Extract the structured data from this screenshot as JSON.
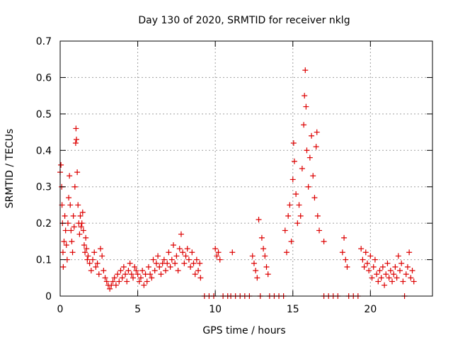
{
  "chart_data": {
    "type": "scatter",
    "title": "Day 130 of 2020, SRMTID for receiver nklg",
    "xlabel": "GPS time / hours",
    "ylabel": "SRMTID / TECUs",
    "xlim": [
      0,
      24
    ],
    "ylim": [
      0,
      0.7
    ],
    "xticks": [
      0,
      5,
      10,
      15,
      20
    ],
    "xtick_labels": [
      "0",
      "5",
      "10",
      "15",
      "20"
    ],
    "yticks": [
      0,
      0.1,
      0.2,
      0.3,
      0.4,
      0.5,
      0.6,
      0.7
    ],
    "ytick_labels": [
      "0",
      "0.1",
      "0.2",
      "0.3",
      "0.4",
      "0.5",
      "0.6",
      "0.7"
    ],
    "grid": true,
    "marker": "+",
    "color": "#dd0000",
    "series": [
      {
        "name": "SRMTID",
        "marker": "+",
        "points": [
          [
            0.0,
            0.34
          ],
          [
            0.05,
            0.36
          ],
          [
            0.1,
            0.3
          ],
          [
            0.12,
            0.25
          ],
          [
            0.15,
            0.2
          ],
          [
            0.18,
            0.12
          ],
          [
            0.2,
            0.08
          ],
          [
            0.25,
            0.15
          ],
          [
            0.3,
            0.22
          ],
          [
            0.35,
            0.18
          ],
          [
            0.4,
            0.14
          ],
          [
            0.45,
            0.1
          ],
          [
            0.5,
            0.2
          ],
          [
            0.55,
            0.27
          ],
          [
            0.6,
            0.33
          ],
          [
            0.65,
            0.25
          ],
          [
            0.7,
            0.18
          ],
          [
            0.75,
            0.15
          ],
          [
            0.8,
            0.12
          ],
          [
            0.85,
            0.22
          ],
          [
            0.9,
            0.19
          ],
          [
            0.95,
            0.3
          ],
          [
            1.0,
            0.42
          ],
          [
            1.02,
            0.46
          ],
          [
            1.05,
            0.43
          ],
          [
            1.1,
            0.34
          ],
          [
            1.15,
            0.25
          ],
          [
            1.2,
            0.2
          ],
          [
            1.25,
            0.17
          ],
          [
            1.3,
            0.22
          ],
          [
            1.35,
            0.19
          ],
          [
            1.4,
            0.2
          ],
          [
            1.45,
            0.23
          ],
          [
            1.5,
            0.18
          ],
          [
            1.55,
            0.14
          ],
          [
            1.6,
            0.12
          ],
          [
            1.65,
            0.16
          ],
          [
            1.7,
            0.13
          ],
          [
            1.75,
            0.1
          ],
          [
            1.8,
            0.11
          ],
          [
            1.9,
            0.09
          ],
          [
            2.0,
            0.07
          ],
          [
            2.1,
            0.1
          ],
          [
            2.2,
            0.12
          ],
          [
            2.3,
            0.08
          ],
          [
            2.4,
            0.09
          ],
          [
            2.5,
            0.06
          ],
          [
            2.6,
            0.13
          ],
          [
            2.7,
            0.11
          ],
          [
            2.8,
            0.07
          ],
          [
            2.9,
            0.05
          ],
          [
            3.0,
            0.04
          ],
          [
            3.1,
            0.03
          ],
          [
            3.2,
            0.02
          ],
          [
            3.3,
            0.03
          ],
          [
            3.4,
            0.04
          ],
          [
            3.5,
            0.05
          ],
          [
            3.6,
            0.03
          ],
          [
            3.7,
            0.06
          ],
          [
            3.8,
            0.04
          ],
          [
            3.9,
            0.07
          ],
          [
            4.0,
            0.05
          ],
          [
            4.1,
            0.08
          ],
          [
            4.2,
            0.06
          ],
          [
            4.3,
            0.04
          ],
          [
            4.4,
            0.07
          ],
          [
            4.5,
            0.09
          ],
          [
            4.6,
            0.06
          ],
          [
            4.7,
            0.05
          ],
          [
            4.8,
            0.08
          ],
          [
            4.9,
            0.07
          ],
          [
            5.0,
            0.06
          ],
          [
            5.1,
            0.04
          ],
          [
            5.2,
            0.05
          ],
          [
            5.3,
            0.07
          ],
          [
            5.4,
            0.03
          ],
          [
            5.5,
            0.06
          ],
          [
            5.6,
            0.04
          ],
          [
            5.7,
            0.08
          ],
          [
            5.8,
            0.06
          ],
          [
            5.9,
            0.05
          ],
          [
            6.0,
            0.1
          ],
          [
            6.1,
            0.07
          ],
          [
            6.2,
            0.09
          ],
          [
            6.3,
            0.11
          ],
          [
            6.4,
            0.08
          ],
          [
            6.5,
            0.06
          ],
          [
            6.6,
            0.09
          ],
          [
            6.7,
            0.1
          ],
          [
            6.8,
            0.07
          ],
          [
            6.9,
            0.09
          ],
          [
            7.0,
            0.12
          ],
          [
            7.1,
            0.08
          ],
          [
            7.2,
            0.1
          ],
          [
            7.3,
            0.14
          ],
          [
            7.4,
            0.09
          ],
          [
            7.5,
            0.11
          ],
          [
            7.6,
            0.07
          ],
          [
            7.7,
            0.13
          ],
          [
            7.8,
            0.17
          ],
          [
            7.9,
            0.12
          ],
          [
            8.0,
            0.09
          ],
          [
            8.1,
            0.11
          ],
          [
            8.2,
            0.13
          ],
          [
            8.3,
            0.1
          ],
          [
            8.4,
            0.08
          ],
          [
            8.5,
            0.12
          ],
          [
            8.6,
            0.09
          ],
          [
            8.7,
            0.06
          ],
          [
            8.8,
            0.1
          ],
          [
            8.9,
            0.07
          ],
          [
            9.0,
            0.09
          ],
          [
            9.05,
            0.05
          ],
          [
            9.3,
            0.0
          ],
          [
            9.6,
            0.0
          ],
          [
            9.9,
            0.0
          ],
          [
            10.0,
            0.13
          ],
          [
            10.1,
            0.11
          ],
          [
            10.2,
            0.12
          ],
          [
            10.3,
            0.1
          ],
          [
            10.5,
            0.0
          ],
          [
            10.8,
            0.0
          ],
          [
            11.0,
            0.0
          ],
          [
            11.1,
            0.12
          ],
          [
            11.3,
            0.0
          ],
          [
            11.6,
            0.0
          ],
          [
            11.9,
            0.0
          ],
          [
            12.2,
            0.0
          ],
          [
            12.4,
            0.11
          ],
          [
            12.5,
            0.09
          ],
          [
            12.6,
            0.07
          ],
          [
            12.7,
            0.05
          ],
          [
            12.8,
            0.21
          ],
          [
            12.9,
            0.0
          ],
          [
            13.0,
            0.16
          ],
          [
            13.1,
            0.13
          ],
          [
            13.2,
            0.11
          ],
          [
            13.3,
            0.08
          ],
          [
            13.4,
            0.06
          ],
          [
            13.5,
            0.0
          ],
          [
            13.8,
            0.0
          ],
          [
            14.1,
            0.0
          ],
          [
            14.4,
            0.0
          ],
          [
            14.5,
            0.18
          ],
          [
            14.6,
            0.12
          ],
          [
            14.7,
            0.22
          ],
          [
            14.8,
            0.25
          ],
          [
            14.9,
            0.15
          ],
          [
            15.0,
            0.32
          ],
          [
            15.05,
            0.42
          ],
          [
            15.1,
            0.37
          ],
          [
            15.2,
            0.28
          ],
          [
            15.3,
            0.2
          ],
          [
            15.4,
            0.25
          ],
          [
            15.5,
            0.22
          ],
          [
            15.6,
            0.35
          ],
          [
            15.7,
            0.47
          ],
          [
            15.75,
            0.55
          ],
          [
            15.8,
            0.62
          ],
          [
            15.85,
            0.52
          ],
          [
            15.9,
            0.4
          ],
          [
            16.0,
            0.3
          ],
          [
            16.1,
            0.38
          ],
          [
            16.2,
            0.44
          ],
          [
            16.3,
            0.33
          ],
          [
            16.4,
            0.27
          ],
          [
            16.5,
            0.41
          ],
          [
            16.55,
            0.45
          ],
          [
            16.6,
            0.22
          ],
          [
            16.7,
            0.18
          ],
          [
            17.0,
            0.15
          ],
          [
            17.0,
            0.0
          ],
          [
            17.3,
            0.0
          ],
          [
            17.6,
            0.0
          ],
          [
            17.9,
            0.0
          ],
          [
            18.2,
            0.12
          ],
          [
            18.3,
            0.16
          ],
          [
            18.4,
            0.1
          ],
          [
            18.5,
            0.08
          ],
          [
            18.6,
            0.0
          ],
          [
            18.9,
            0.0
          ],
          [
            19.2,
            0.0
          ],
          [
            19.4,
            0.13
          ],
          [
            19.5,
            0.1
          ],
          [
            19.6,
            0.08
          ],
          [
            19.7,
            0.12
          ],
          [
            19.8,
            0.09
          ],
          [
            19.9,
            0.07
          ],
          [
            20.0,
            0.11
          ],
          [
            20.1,
            0.05
          ],
          [
            20.2,
            0.08
          ],
          [
            20.3,
            0.1
          ],
          [
            20.4,
            0.06
          ],
          [
            20.5,
            0.04
          ],
          [
            20.6,
            0.07
          ],
          [
            20.7,
            0.05
          ],
          [
            20.8,
            0.08
          ],
          [
            20.9,
            0.03
          ],
          [
            21.0,
            0.06
          ],
          [
            21.1,
            0.09
          ],
          [
            21.2,
            0.05
          ],
          [
            21.3,
            0.07
          ],
          [
            21.4,
            0.04
          ],
          [
            21.5,
            0.06
          ],
          [
            21.6,
            0.08
          ],
          [
            21.7,
            0.05
          ],
          [
            21.8,
            0.11
          ],
          [
            21.9,
            0.07
          ],
          [
            22.0,
            0.09
          ],
          [
            22.1,
            0.04
          ],
          [
            22.2,
            0.0
          ],
          [
            22.3,
            0.06
          ],
          [
            22.4,
            0.08
          ],
          [
            22.5,
            0.12
          ],
          [
            22.6,
            0.05
          ],
          [
            22.7,
            0.07
          ],
          [
            22.8,
            0.04
          ]
        ]
      }
    ]
  }
}
